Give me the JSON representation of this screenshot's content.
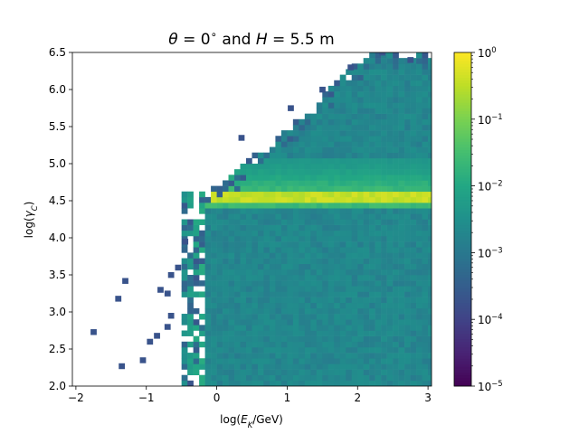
{
  "chart_data": {
    "type": "heatmap",
    "title": "θ = 0° and H = 5.5 m",
    "title_parts": [
      {
        "text": "θ",
        "italic": true
      },
      {
        "text": " = 0",
        "italic": false
      },
      {
        "text": "∘",
        "sup": true
      },
      {
        "text": " and ",
        "italic": false
      },
      {
        "text": "H",
        "italic": true
      },
      {
        "text": " = 5.5 m",
        "italic": false
      }
    ],
    "xlabel": "log(E_K/GeV)",
    "xlabel_parts": [
      {
        "text": "log(",
        "italic": false
      },
      {
        "text": "E",
        "italic": true
      },
      {
        "text": "K",
        "sub": true,
        "italic": true
      },
      {
        "text": "/GeV)",
        "italic": false
      }
    ],
    "ylabel": "log(γ_C)",
    "ylabel_parts": [
      {
        "text": "log(",
        "italic": false
      },
      {
        "text": "γ",
        "italic": true
      },
      {
        "text": "C",
        "sub": true,
        "italic": true
      },
      {
        "text": ")",
        "italic": false
      }
    ],
    "xlim": [
      -2.05,
      3.05
    ],
    "ylim": [
      2.0,
      6.5
    ],
    "xticks": [
      -2,
      -1,
      0,
      1,
      2,
      3
    ],
    "xtick_labels": [
      "−2",
      "−1",
      "0",
      "1",
      "2",
      "3"
    ],
    "yticks": [
      2.0,
      2.5,
      3.0,
      3.5,
      4.0,
      4.5,
      5.0,
      5.5,
      6.0,
      6.5
    ],
    "ytick_labels": [
      "2.0",
      "2.5",
      "3.0",
      "3.5",
      "4.0",
      "4.5",
      "5.0",
      "5.5",
      "6.0",
      "6.5"
    ],
    "bin_width_x": 0.0833,
    "bin_width_y": 0.075,
    "colorbar": {
      "scale": "log",
      "colormap": "viridis",
      "vmin": 1e-05,
      "vmax": 1,
      "tick_values": [
        1e-05,
        0.0001,
        0.001,
        0.01,
        0.1,
        1
      ],
      "tick_labels": [
        {
          "base": "10",
          "exp": "−5"
        },
        {
          "base": "10",
          "exp": "−4"
        },
        {
          "base": "10",
          "exp": "−3"
        },
        {
          "base": "10",
          "exp": "−2"
        },
        {
          "base": "10",
          "exp": "−1"
        },
        {
          "base": "10",
          "exp": "0"
        }
      ]
    },
    "features": {
      "main_ridge": {
        "y": 4.55,
        "x_range": [
          -0.2,
          3.05
        ],
        "peak_value": 0.5,
        "description_value_min": 0.1
      },
      "vertical_band": {
        "x_range": [
          -0.5,
          -0.2
        ],
        "y_range": [
          2.0,
          4.6
        ],
        "value": 0.01
      },
      "background_level": 0.002,
      "upper_envelope_points": [
        [
          -0.2,
          4.6
        ],
        [
          0.3,
          4.9
        ],
        [
          0.8,
          5.35
        ],
        [
          1.3,
          5.7
        ],
        [
          1.8,
          6.2
        ],
        [
          2.2,
          6.5
        ],
        [
          3.05,
          6.5
        ]
      ],
      "isolated_points": [
        {
          "x": -1.75,
          "y": 2.73,
          "value": 0.0002
        },
        {
          "x": -1.35,
          "y": 2.27,
          "value": 0.0002
        },
        {
          "x": -1.05,
          "y": 2.35,
          "value": 0.0002
        },
        {
          "x": -0.95,
          "y": 2.6,
          "value": 0.0002
        },
        {
          "x": -0.85,
          "y": 2.68,
          "value": 0.0002
        },
        {
          "x": -0.7,
          "y": 2.8,
          "value": 0.0002
        },
        {
          "x": -0.65,
          "y": 2.95,
          "value": 0.0002
        },
        {
          "x": -0.8,
          "y": 3.3,
          "value": 0.0002
        },
        {
          "x": -0.7,
          "y": 3.25,
          "value": 0.0002
        },
        {
          "x": -0.65,
          "y": 3.5,
          "value": 0.0002
        },
        {
          "x": -1.3,
          "y": 3.42,
          "value": 0.0002
        },
        {
          "x": -1.4,
          "y": 3.18,
          "value": 0.0002
        },
        {
          "x": -0.55,
          "y": 3.6,
          "value": 0.0002
        },
        {
          "x": -0.45,
          "y": 3.95,
          "value": 0.0002
        },
        {
          "x": 0.35,
          "y": 5.35,
          "value": 0.0002
        },
        {
          "x": 1.05,
          "y": 5.75,
          "value": 0.0002
        },
        {
          "x": 1.5,
          "y": 6.0,
          "value": 0.0002
        },
        {
          "x": 1.9,
          "y": 6.3,
          "value": 0.0002
        },
        {
          "x": 2.35,
          "y": 6.5,
          "value": 0.0002
        },
        {
          "x": 2.75,
          "y": 6.4,
          "value": 0.0002
        }
      ]
    }
  }
}
